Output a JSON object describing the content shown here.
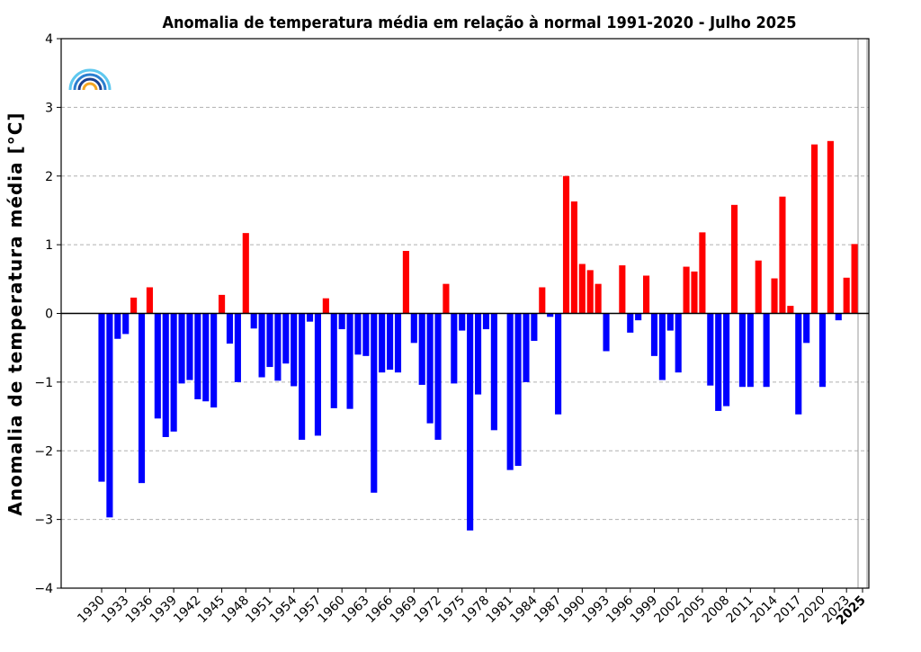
{
  "chart_data": {
    "type": "bar",
    "title": "Anomalia de temperatura média em relação à normal 1991-2020 - Julho 2025",
    "xlabel": "",
    "ylabel": "Anomalia de temperatura média [°C]",
    "ylim": [
      -4,
      4
    ],
    "yticks": [
      4,
      3,
      2,
      1,
      0,
      -1,
      -2,
      -3,
      -4
    ],
    "ytick_labels": [
      "4",
      "3",
      "2",
      "1",
      "0",
      "−1",
      "−2",
      "−3",
      "−4"
    ],
    "xticks": [
      "1930",
      "1933",
      "1936",
      "1939",
      "1942",
      "1945",
      "1948",
      "1951",
      "1954",
      "1957",
      "1960",
      "1963",
      "1966",
      "1969",
      "1972",
      "1975",
      "1978",
      "1981",
      "1984",
      "1987",
      "1990",
      "1993",
      "1996",
      "1999",
      "2002",
      "2005",
      "2008",
      "2011",
      "2014",
      "2017",
      "2020",
      "2023",
      "2025"
    ],
    "highlight_tick": "2025",
    "grid": "y-dashed",
    "legend": "none",
    "colors": {
      "positive": "#ff0000",
      "negative": "#0000ff",
      "zero_line": "#000000",
      "grid": "#b0b0b0",
      "highlight_line": "#999999"
    },
    "x": [
      1930,
      1931,
      1932,
      1933,
      1934,
      1935,
      1936,
      1937,
      1938,
      1939,
      1940,
      1941,
      1942,
      1943,
      1944,
      1945,
      1946,
      1947,
      1948,
      1949,
      1950,
      1951,
      1952,
      1953,
      1954,
      1955,
      1956,
      1957,
      1958,
      1959,
      1960,
      1961,
      1962,
      1963,
      1964,
      1965,
      1966,
      1967,
      1968,
      1969,
      1970,
      1971,
      1972,
      1973,
      1974,
      1975,
      1976,
      1977,
      1978,
      1979,
      1980,
      1981,
      1982,
      1983,
      1984,
      1985,
      1986,
      1987,
      1988,
      1989,
      1990,
      1991,
      1992,
      1993,
      1994,
      1995,
      1996,
      1997,
      1998,
      1999,
      2000,
      2001,
      2002,
      2003,
      2004,
      2005,
      2006,
      2007,
      2008,
      2009,
      2010,
      2011,
      2012,
      2013,
      2014,
      2015,
      2016,
      2017,
      2018,
      2019,
      2020,
      2021,
      2022,
      2023,
      2024,
      2025
    ],
    "values": [
      -2.45,
      -2.97,
      -0.37,
      -0.3,
      0.23,
      -2.47,
      0.38,
      -1.53,
      -1.8,
      -1.72,
      -1.02,
      -0.97,
      -1.25,
      -1.28,
      -1.37,
      0.27,
      -0.44,
      -1.0,
      1.17,
      -0.22,
      -0.93,
      -0.78,
      -0.98,
      -0.73,
      -1.06,
      -1.84,
      -0.12,
      -1.78,
      0.22,
      -1.38,
      -0.23,
      -1.39,
      -0.6,
      -0.62,
      -2.61,
      -0.86,
      -0.82,
      -0.86,
      0.91,
      -0.43,
      -1.04,
      -1.6,
      -1.84,
      0.43,
      -1.02,
      -0.25,
      -3.16,
      -1.18,
      -0.23,
      -1.7,
      0.0,
      -2.28,
      -2.22,
      -1.0,
      -0.4,
      0.38,
      -0.05,
      -1.47,
      2.0,
      1.63,
      0.72,
      0.63,
      0.43,
      -0.55,
      0.0,
      0.7,
      -0.28,
      -0.1,
      0.55,
      -0.62,
      -0.97,
      -0.25,
      -0.86,
      0.68,
      0.61,
      1.18,
      -1.05,
      -1.42,
      -1.35,
      1.58,
      -1.07,
      -1.07,
      0.77,
      -1.07,
      0.51,
      1.7,
      0.11,
      -1.47,
      -0.43,
      2.46,
      -1.07,
      2.51,
      -0.1,
      0.52,
      1.01,
      0.0
    ]
  }
}
